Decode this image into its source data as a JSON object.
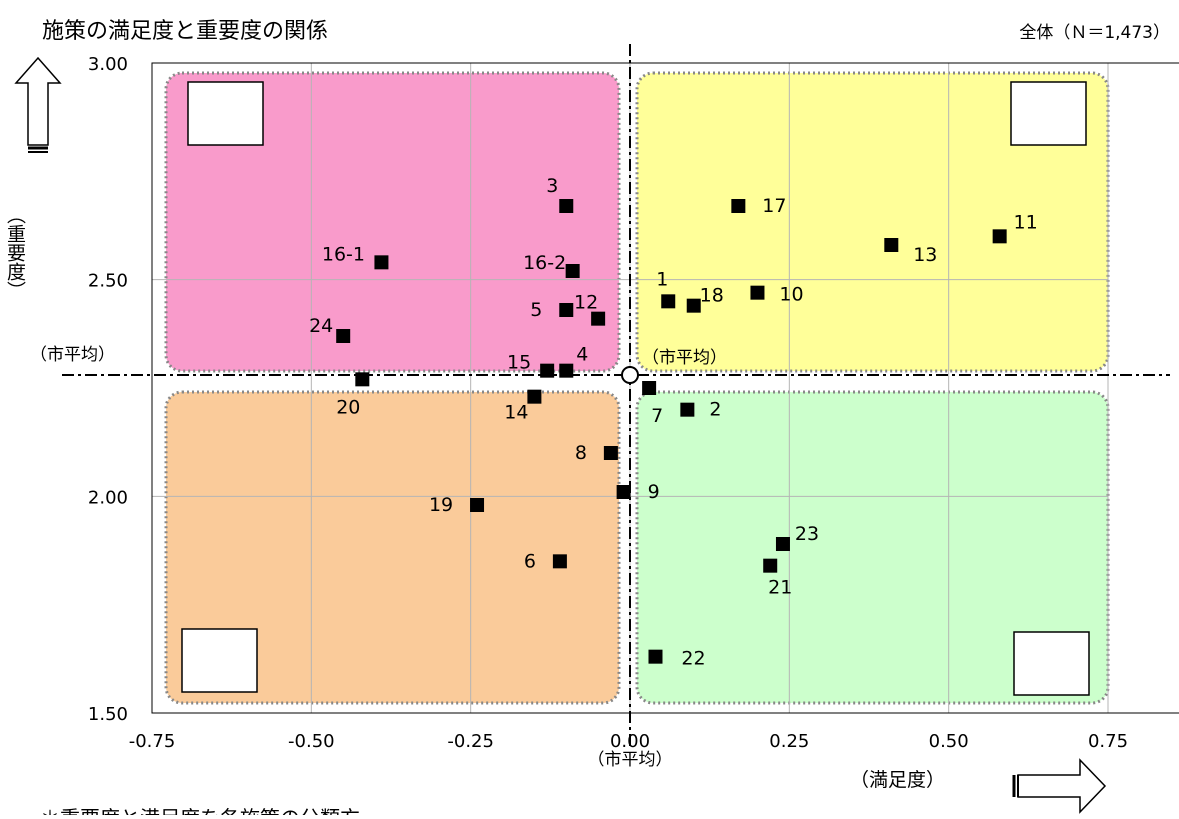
{
  "chart_data": {
    "type": "scatter",
    "title": "施策の満足度と重要度の関係",
    "sample_label": "全体（Ｎ＝1,473）",
    "xlabel": "（満足度）",
    "ylabel": "（重要度）",
    "xlim": [
      -0.75,
      0.75
    ],
    "ylim": [
      1.5,
      3.0
    ],
    "x_ticks": [
      "-0.75",
      "-0.50",
      "-0.25",
      "0.00",
      "0.25",
      "0.50",
      "0.75"
    ],
    "y_ticks": [
      "1.50",
      "2.00",
      "2.50",
      "3.00"
    ],
    "grid": true,
    "average": {
      "x": 0.0,
      "y": 2.28
    },
    "avg_labels": {
      "x_axis": "（市平均）",
      "y_axis": "（市平均）",
      "center": "（市平均）"
    },
    "footer_text": "＊重要度と満足度を各施策の分類方",
    "quadrant_colors": {
      "top_left": "#f99bcb",
      "top_right": "#ffff99",
      "bottom_left": "#facb9a",
      "bottom_right": "#ccffcc"
    },
    "points": [
      {
        "label": "1",
        "x": 0.06,
        "y": 2.45
      },
      {
        "label": "2",
        "x": 0.09,
        "y": 2.2
      },
      {
        "label": "3",
        "x": -0.1,
        "y": 2.67
      },
      {
        "label": "4",
        "x": -0.1,
        "y": 2.29
      },
      {
        "label": "5",
        "x": -0.1,
        "y": 2.43
      },
      {
        "label": "6",
        "x": -0.11,
        "y": 1.85
      },
      {
        "label": "7",
        "x": 0.03,
        "y": 2.25
      },
      {
        "label": "8",
        "x": -0.03,
        "y": 2.1
      },
      {
        "label": "9",
        "x": -0.01,
        "y": 2.01
      },
      {
        "label": "10",
        "x": 0.2,
        "y": 2.47
      },
      {
        "label": "11",
        "x": 0.58,
        "y": 2.6
      },
      {
        "label": "12",
        "x": -0.05,
        "y": 2.41
      },
      {
        "label": "13",
        "x": 0.41,
        "y": 2.58
      },
      {
        "label": "14",
        "x": -0.15,
        "y": 2.23
      },
      {
        "label": "15",
        "x": -0.13,
        "y": 2.29
      },
      {
        "label": "16-1",
        "x": -0.39,
        "y": 2.54
      },
      {
        "label": "16-2",
        "x": -0.09,
        "y": 2.52
      },
      {
        "label": "17",
        "x": 0.17,
        "y": 2.67
      },
      {
        "label": "18",
        "x": 0.1,
        "y": 2.44
      },
      {
        "label": "19",
        "x": -0.24,
        "y": 1.98
      },
      {
        "label": "20",
        "x": -0.42,
        "y": 2.27
      },
      {
        "label": "21",
        "x": 0.22,
        "y": 1.84
      },
      {
        "label": "22",
        "x": 0.04,
        "y": 1.63
      },
      {
        "label": "23",
        "x": 0.24,
        "y": 1.89
      },
      {
        "label": "24",
        "x": -0.45,
        "y": 2.37
      }
    ]
  }
}
